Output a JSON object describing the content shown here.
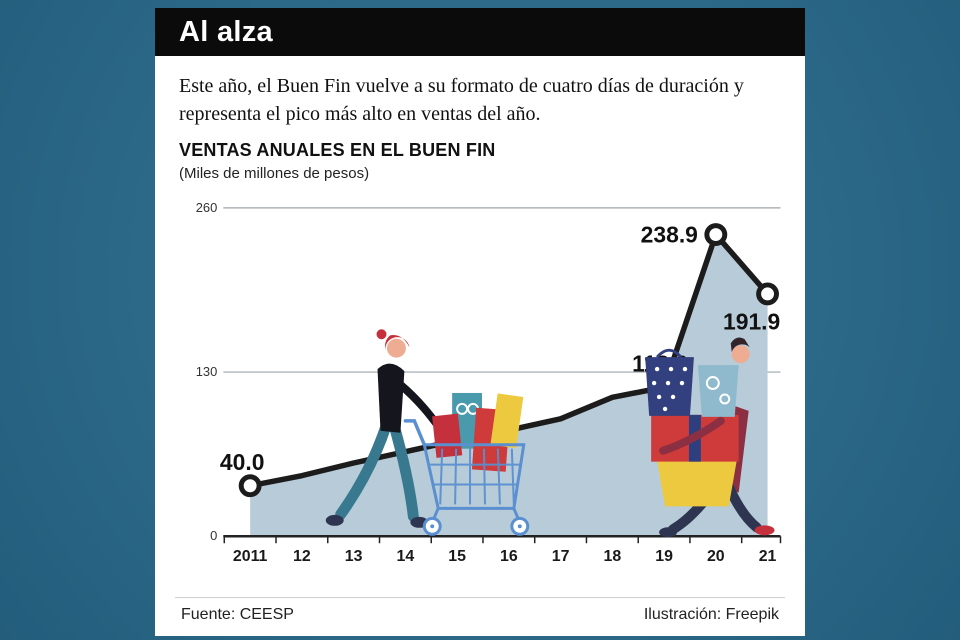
{
  "page": {
    "background_color": "#2e6d8d",
    "header": {
      "title": "Al alza"
    },
    "intro": "Este año, el Buen Fin vuelve a su formato de cuatro días de duración y representa el pico más alto en ventas del año.",
    "footer": {
      "source": "Fuente: CEESP",
      "credit": "Ilustración: Freepik"
    }
  },
  "chart_data": {
    "type": "line",
    "title": "VENTAS ANUALES EN EL BUEN FIN",
    "subtitle": "(Miles de millones de pesos)",
    "categories": [
      "2011",
      "12",
      "13",
      "14",
      "15",
      "16",
      "17",
      "18",
      "19",
      "20",
      "21"
    ],
    "values": [
      40.0,
      48,
      58,
      67,
      76,
      84,
      93,
      110,
      118.0,
      238.9,
      191.9
    ],
    "ylim": [
      0,
      260
    ],
    "yticks": [
      0,
      130,
      260
    ],
    "labeled_points": [
      {
        "category": "2011",
        "value": 40.0,
        "label": "40.0"
      },
      {
        "category": "19",
        "value": 118.0,
        "label": "118.0"
      },
      {
        "category": "20",
        "value": 238.9,
        "label": "238.9"
      },
      {
        "category": "21",
        "value": 191.9,
        "label": "191.9"
      }
    ],
    "area_color": "#b7ccd8",
    "line_color": "#1c1c1c",
    "grid": true,
    "legend": "none"
  }
}
